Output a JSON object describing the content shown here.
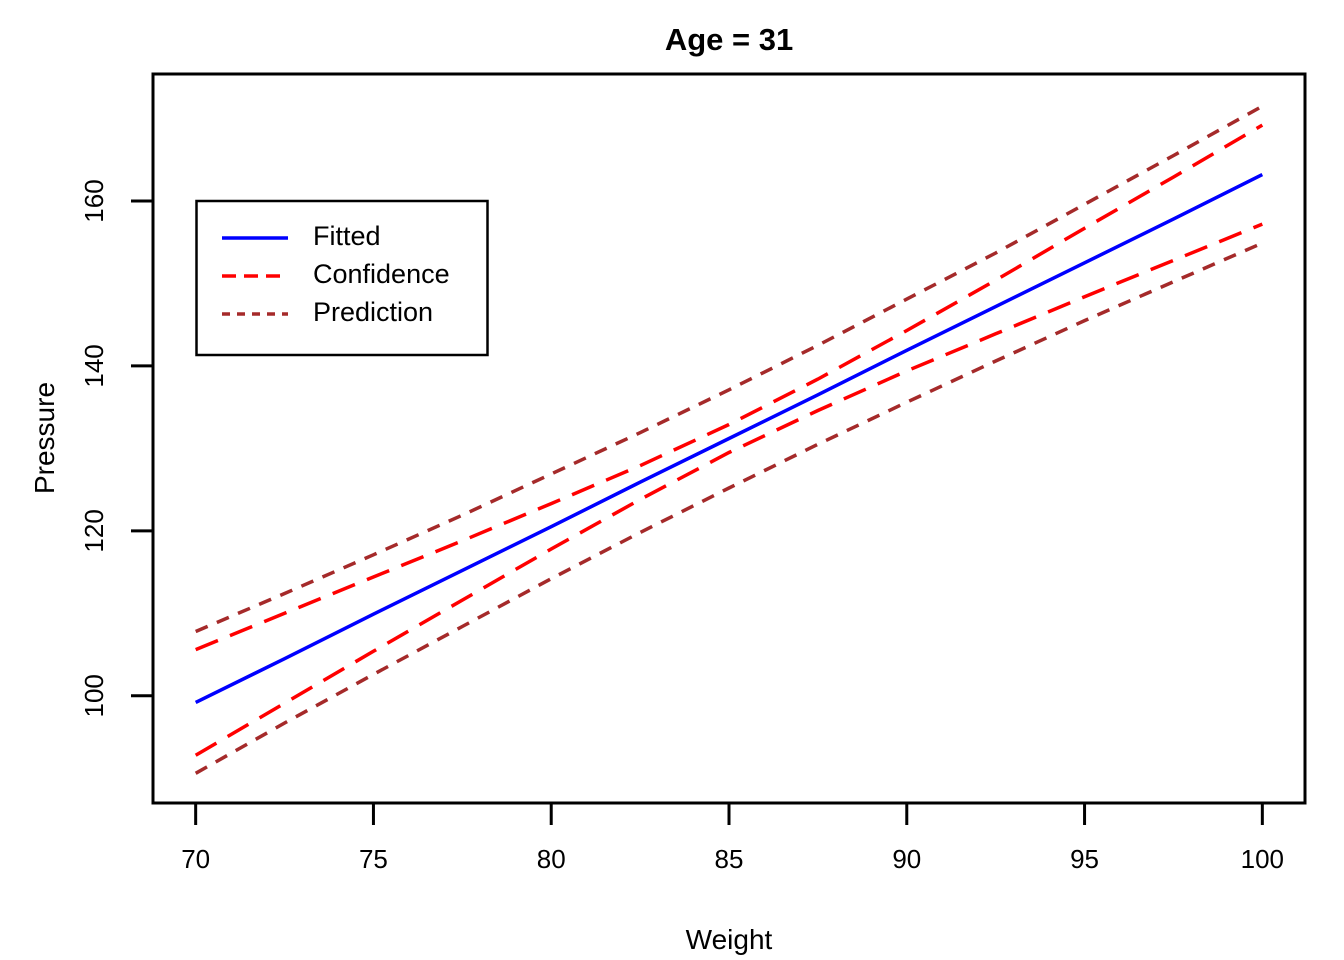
{
  "chart_data": {
    "type": "line",
    "title": "Age = 31",
    "xlabel": "Weight",
    "ylabel": "Pressure",
    "xlim": [
      68.8,
      101.2
    ],
    "ylim": [
      87.0,
      175.4
    ],
    "xticks": [
      70,
      75,
      80,
      85,
      90,
      95,
      100
    ],
    "yticks": [
      100,
      120,
      140,
      160
    ],
    "grid": false,
    "background": "#ffffff",
    "frame_color": "#000000",
    "x": [
      70,
      72.5,
      75,
      77.5,
      80,
      82.5,
      85,
      87.5,
      90,
      92.5,
      95,
      97.5,
      100
    ],
    "series": [
      {
        "id": "fitted",
        "name": "Fitted",
        "color": "#0000FF",
        "dash": "",
        "width": 3.5,
        "values": [
          99.2,
          104.5,
          109.9,
          115.2,
          120.5,
          125.9,
          131.2,
          136.5,
          141.9,
          147.2,
          152.5,
          157.8,
          163.2
        ]
      },
      {
        "id": "confidence-upper",
        "name": "Confidence (upper)",
        "color": "#FF0000",
        "dash": "24,13",
        "width": 3.5,
        "values": [
          105.6,
          110.0,
          114.4,
          118.8,
          123.3,
          127.9,
          132.9,
          138.4,
          144.3,
          150.4,
          156.7,
          162.9,
          169.2
        ]
      },
      {
        "id": "confidence-lower",
        "name": "Confidence (lower)",
        "color": "#FF0000",
        "dash": "24,13",
        "width": 3.5,
        "values": [
          92.8,
          99.1,
          105.4,
          111.6,
          117.8,
          123.8,
          129.5,
          134.6,
          139.4,
          143.9,
          148.4,
          152.8,
          157.2
        ]
      },
      {
        "id": "prediction-upper",
        "name": "Prediction (upper)",
        "color": "#A52A2A",
        "dash": "13,10",
        "width": 3.5,
        "values": [
          107.8,
          112.4,
          117.1,
          121.9,
          126.9,
          131.9,
          137.1,
          142.5,
          148.1,
          153.7,
          159.6,
          165.5,
          171.5
        ]
      },
      {
        "id": "prediction-lower",
        "name": "Prediction (lower)",
        "color": "#A52A2A",
        "dash": "13,10",
        "width": 3.5,
        "values": [
          90.6,
          96.7,
          102.6,
          108.4,
          114.2,
          119.8,
          125.2,
          130.5,
          135.6,
          140.6,
          145.5,
          150.2,
          154.9
        ]
      }
    ],
    "legend": {
      "position": "top-left",
      "items": [
        {
          "id": "fitted",
          "label": "Fitted",
          "color": "#0000FF",
          "dash": ""
        },
        {
          "id": "confidence",
          "label": "Confidence",
          "color": "#FF0000",
          "dash": "14,8"
        },
        {
          "id": "prediction",
          "label": "Prediction",
          "color": "#A52A2A",
          "dash": "8,7"
        }
      ]
    }
  }
}
